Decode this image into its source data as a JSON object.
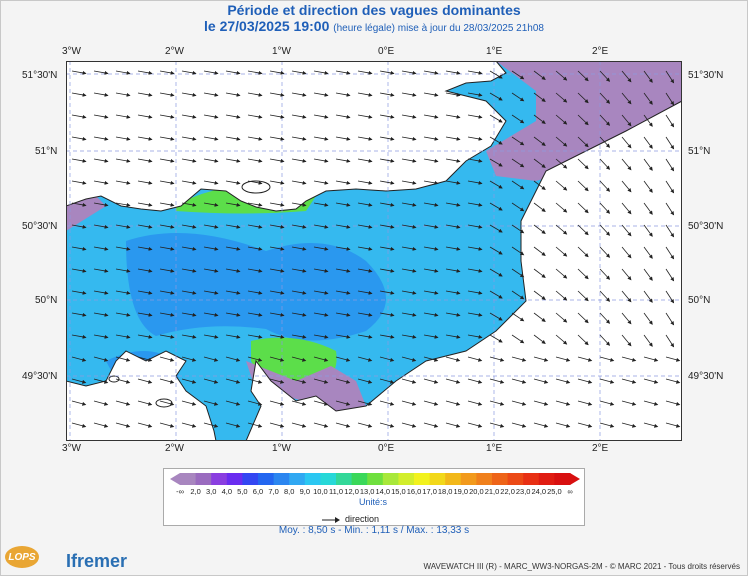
{
  "title": "Période et direction des vagues dominantes",
  "subtitle_main": "le 27/03/2025 19:00",
  "subtitle_small": "(heure légale) mise à jour du 28/03/2025 21h08",
  "lon_ticks": [
    "3°W",
    "2°W",
    "1°W",
    "0°E",
    "1°E",
    "2°E"
  ],
  "lat_ticks_left": [
    "51°30'N",
    "51°N",
    "50°30'N",
    "50°N",
    "49°30'N"
  ],
  "lat_ticks_right": [
    "51°30'N",
    "51°N",
    "50°30'N",
    "50°N",
    "49°30'N"
  ],
  "legend": {
    "colors": [
      "#a886bf",
      "#9a6bbf",
      "#8a3ee0",
      "#6a2cf0",
      "#3346f2",
      "#2366f0",
      "#2b86f0",
      "#30a8f2",
      "#2bc7f2",
      "#27d8d8",
      "#33d899",
      "#3ad85a",
      "#6fe03e",
      "#a8e83a",
      "#d2ee2c",
      "#f2f21e",
      "#f2d81a",
      "#f2b81a",
      "#f29a1c",
      "#f0801c",
      "#ee6418",
      "#ec4a16",
      "#e83014",
      "#e01c12",
      "#d81010"
    ],
    "labels": [
      "-∞",
      "2,0",
      "3,0",
      "4,0",
      "5,0",
      "6,0",
      "7,0",
      "8,0",
      "9,0",
      "10,0",
      "11,0",
      "12,0",
      "13,0",
      "14,0",
      "15,0",
      "16,0",
      "17,0",
      "18,0",
      "19,0",
      "20,0",
      "21,0",
      "22,0",
      "23,0",
      "24,0",
      "25,0",
      "∞"
    ],
    "unit": "Unité:s",
    "direction_label": "direction"
  },
  "stats": "Moy. : 8,50 s   -   Min. : 1,11 s / Max. : 13,33 s",
  "footer": "WAVEWATCH III (R) - MARC_WW3-NORGAS-2M - © MARC 2021 - Tous droits réservés",
  "logos": {
    "lops": "LOPS",
    "ifremer": "Ifremer"
  },
  "map_colors": {
    "sea_main": "#35b9ef",
    "sea_deep": "#2a98ef",
    "sea_long": "#a886bf",
    "sea_green": "#5cde4a",
    "land": "#ffffff",
    "grid": "#8c9ae0"
  }
}
